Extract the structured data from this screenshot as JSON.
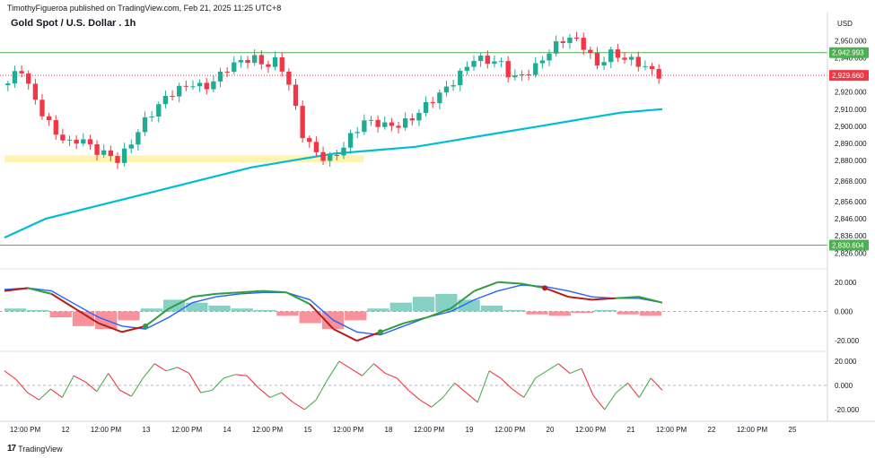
{
  "header": {
    "published_by": "TimothyFigueroa published on TradingView.com, Feb 21, 2025 11:25 UTC+8",
    "symbol_title": "Gold Spot / U.S. Dollar . 1h",
    "currency": "USD"
  },
  "footer": {
    "brand": "TradingView",
    "logo_glyph": "17"
  },
  "colors": {
    "up": "#22ab94",
    "down": "#f23645",
    "ema": "#00bcd4",
    "hline": "#4caf50",
    "price_line": "#f23645",
    "highlight": "#fff3b0",
    "wave_fast_up": "#2e9e3e",
    "wave_fast_down": "#b71c1c",
    "wave_slow": "#2962ff",
    "osc_up": "#4caf50",
    "osc_down": "#f23645"
  },
  "chart_data": [
    {
      "type": "candlestick",
      "title": "Gold Spot / U.S. Dollar . 1h",
      "y_axis_ticks": [
        2950,
        2940,
        2930,
        2920,
        2910,
        2900,
        2890,
        2880,
        2868,
        2856,
        2846,
        2836,
        2826
      ],
      "y_axis_tick_labels": [
        "2,950.000",
        "2,940.000",
        "2,930.000",
        "2,920.000",
        "2,910.000",
        "2,900.000",
        "2,890.000",
        "2,880.000",
        "2,868.000",
        "2,856.000",
        "2,846.000",
        "2,836.000",
        "2,826.000"
      ],
      "x_axis_labels": [
        "12:00 PM",
        "12",
        "12:00 PM",
        "13",
        "12:00 PM",
        "14",
        "12:00 PM",
        "15",
        "12:00 PM",
        "18",
        "12:00 PM",
        "19",
        "12:00 PM",
        "20",
        "12:00 PM",
        "21",
        "12:00 PM",
        "22",
        "12:00 PM",
        "25"
      ],
      "price_labels": [
        {
          "value": 2942.993,
          "text": "2,942.993",
          "color": "#4caf50"
        },
        {
          "value": 2929.66,
          "text": "2,929.660",
          "color": "#f23645"
        },
        {
          "value": 2830.604,
          "text": "2,830.604",
          "color": "#4caf50"
        }
      ],
      "horizontal_lines": [
        2942.993,
        2830.604
      ],
      "support_zone": [
        2879,
        2883
      ],
      "close_path": [
        2925,
        2935,
        2918,
        2905,
        2895,
        2890,
        2893,
        2886,
        2884,
        2880,
        2890,
        2902,
        2910,
        2918,
        2922,
        2925,
        2922,
        2928,
        2935,
        2938,
        2940,
        2935,
        2939,
        2922,
        2895,
        2885,
        2880,
        2885,
        2895,
        2903,
        2902,
        2900,
        2901,
        2905,
        2912,
        2918,
        2924,
        2932,
        2940,
        2938,
        2938,
        2928,
        2930,
        2935,
        2943,
        2950,
        2952,
        2946,
        2935,
        2943,
        2940,
        2938,
        2934,
        2930
      ],
      "ema_path": [
        2835,
        2846,
        2852,
        2858,
        2864,
        2870,
        2876,
        2880,
        2884,
        2886,
        2888,
        2892,
        2896,
        2900,
        2904,
        2908,
        2910
      ],
      "ylim": [
        2822,
        2958
      ]
    },
    {
      "type": "line",
      "name": "wave oscillator",
      "y_axis_tick_labels": [
        "20.000",
        "0.000",
        "-20.000"
      ],
      "ylim": [
        -26,
        26
      ],
      "series": [
        {
          "name": "",
          "values": [
            14,
            16,
            12,
            2,
            -8,
            -14,
            -10,
            2,
            10,
            12,
            13,
            14,
            13,
            5,
            -12,
            -20,
            -14,
            -8,
            -4,
            2,
            14,
            20,
            19,
            16,
            10,
            8,
            9,
            10,
            6
          ]
        },
        {
          "name": "",
          "values": [
            15,
            16,
            14,
            5,
            -4,
            -10,
            -12,
            -4,
            6,
            10,
            12,
            13,
            13,
            8,
            -6,
            -14,
            -16,
            -10,
            -4,
            0,
            8,
            14,
            18,
            17,
            14,
            10,
            9,
            9,
            6
          ]
        }
      ],
      "histogram": [
        2,
        1,
        -4,
        -10,
        -12,
        -6,
        2,
        8,
        6,
        4,
        2,
        1,
        -3,
        -8,
        -12,
        -6,
        2,
        6,
        10,
        12,
        8,
        4,
        1,
        -2,
        -3,
        -1,
        1,
        -2,
        -3
      ]
    },
    {
      "type": "line",
      "name": "momentum oscillator",
      "y_axis_tick_labels": [
        "20.000",
        "0.000",
        "-20.000"
      ],
      "ylim": [
        -26,
        26
      ],
      "values": [
        12,
        5,
        -6,
        -12,
        -3,
        -10,
        8,
        3,
        -5,
        10,
        -4,
        -9,
        6,
        18,
        12,
        15,
        10,
        -6,
        -4,
        6,
        9,
        8,
        -2,
        -10,
        -6,
        -14,
        -20,
        -12,
        5,
        20,
        14,
        8,
        18,
        10,
        6,
        -4,
        -12,
        -18,
        -10,
        2,
        -6,
        -14,
        12,
        6,
        -3,
        -10,
        6,
        12,
        18,
        10,
        14,
        -8,
        -20,
        -6,
        2,
        -10,
        6,
        -4
      ]
    }
  ]
}
